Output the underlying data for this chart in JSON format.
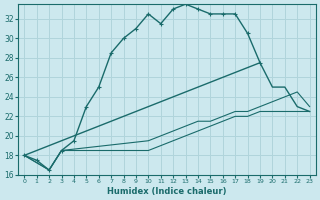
{
  "xlabel": "Humidex (Indice chaleur)",
  "background_color": "#cce8ee",
  "grid_color": "#b0d4db",
  "line_color": "#1a6b6b",
  "xlim": [
    -0.5,
    23.5
  ],
  "ylim": [
    16,
    33.5
  ],
  "xticks": [
    0,
    1,
    2,
    3,
    4,
    5,
    6,
    7,
    8,
    9,
    10,
    11,
    12,
    13,
    14,
    15,
    16,
    17,
    18,
    19,
    20,
    21,
    22,
    23
  ],
  "yticks": [
    16,
    18,
    20,
    22,
    24,
    26,
    28,
    30,
    32
  ],
  "series1_x": [
    0,
    1,
    2,
    3,
    4,
    5,
    6,
    7,
    8,
    9,
    10,
    11,
    12,
    13,
    14,
    15,
    16,
    17,
    18,
    19
  ],
  "series1_y": [
    18.0,
    17.5,
    16.5,
    18.5,
    19.5,
    23.0,
    25.0,
    28.5,
    30.0,
    31.0,
    32.5,
    31.5,
    33.0,
    33.5,
    33.0,
    32.5,
    32.5,
    32.5,
    30.5,
    27.5
  ],
  "series2_x": [
    0,
    19,
    20,
    21,
    22,
    23
  ],
  "series2_y": [
    18.0,
    27.5,
    25.0,
    25.0,
    23.0,
    22.5
  ],
  "series3_x": [
    0,
    2,
    3,
    10,
    11,
    12,
    13,
    14,
    15,
    16,
    17,
    18,
    19,
    20,
    21,
    22,
    23
  ],
  "series3_y": [
    18.0,
    16.5,
    18.5,
    18.5,
    19.0,
    19.5,
    20.0,
    20.5,
    21.0,
    21.5,
    22.0,
    22.0,
    22.5,
    22.5,
    22.5,
    22.5,
    22.5
  ],
  "series4_x": [
    0,
    2,
    3,
    10,
    11,
    12,
    13,
    14,
    15,
    16,
    17,
    18,
    19,
    20,
    21,
    22,
    23
  ],
  "series4_y": [
    18.0,
    16.5,
    18.5,
    19.5,
    20.0,
    20.5,
    21.0,
    21.5,
    21.5,
    22.0,
    22.5,
    22.5,
    23.0,
    23.5,
    24.0,
    24.5,
    23.0
  ]
}
